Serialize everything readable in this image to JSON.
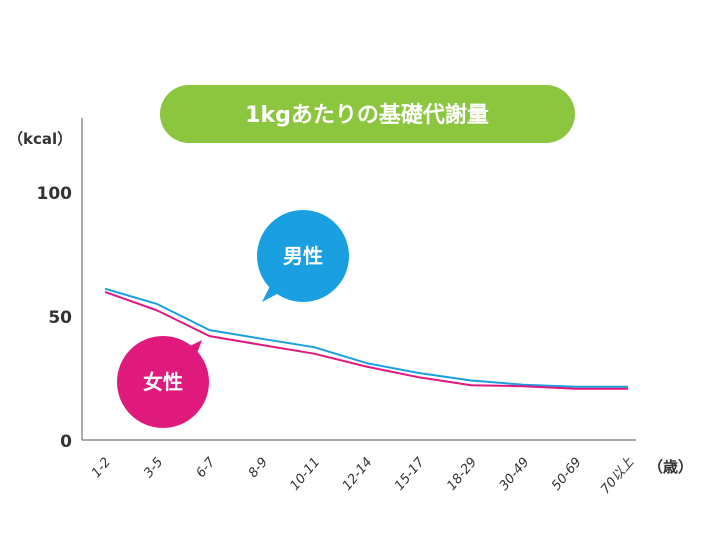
{
  "chart_data": {
    "type": "line",
    "title": "1kgあたりの基礎代謝量",
    "ylabel": "（kcal）",
    "xlabel": "（歳）",
    "ylim": [
      0,
      100
    ],
    "yticks": [
      "0",
      "50",
      "100"
    ],
    "grid": false,
    "categories": [
      "1-2",
      "3-5",
      "6-7",
      "8-9",
      "10-11",
      "12-14",
      "15-17",
      "18-29",
      "30-49",
      "50-69",
      "70以上"
    ],
    "series": [
      {
        "name": "男性",
        "color": "#1a9fe0",
        "values": [
          61.0,
          54.8,
          44.3,
          40.8,
          37.4,
          31.0,
          27.0,
          24.0,
          22.3,
          21.5,
          21.5
        ]
      },
      {
        "name": "女性",
        "color": "#e0197d",
        "values": [
          59.7,
          52.2,
          41.9,
          38.3,
          34.8,
          29.6,
          25.3,
          22.1,
          21.7,
          20.7,
          20.7
        ]
      }
    ],
    "legend": "callout bubbles near lines"
  },
  "colors": {
    "title_bg": "#8cc63f",
    "axis": "#555555",
    "text": "#333333"
  }
}
